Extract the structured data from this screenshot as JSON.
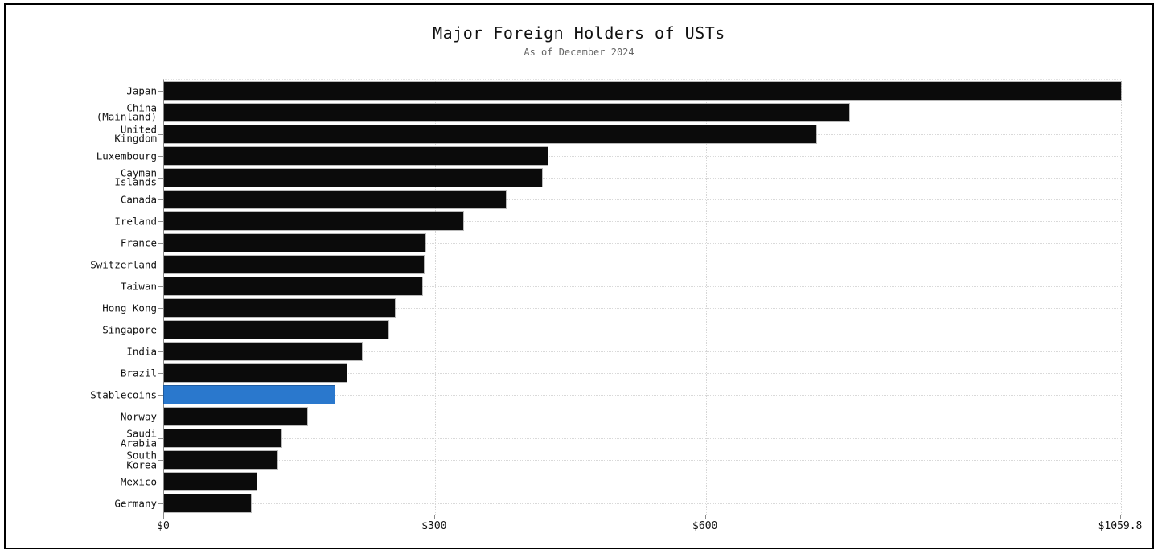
{
  "chart_data": {
    "type": "bar",
    "orientation": "horizontal",
    "title": "Major Foreign Holders of USTs",
    "subtitle": "As of December 2024",
    "xlim": [
      0,
      1059.8
    ],
    "x_ticks": [
      {
        "value": 0,
        "label": "$0"
      },
      {
        "value": 300,
        "label": "$300"
      },
      {
        "value": 600,
        "label": "$600"
      },
      {
        "value": 1059.8,
        "label": "$1059.8"
      }
    ],
    "categories": [
      "Japan",
      "China\n(Mainland)",
      "United\nKingdom",
      "Luxembourg",
      "Cayman\nIslands",
      "Canada",
      "Ireland",
      "France",
      "Switzerland",
      "Taiwan",
      "Hong Kong",
      "Singapore",
      "India",
      "Brazil",
      "Stablecoins",
      "Norway",
      "Saudi\nArabia",
      "South\nKorea",
      "Mexico",
      "Germany"
    ],
    "values": [
      1059.8,
      759.0,
      722.7,
      424.5,
      418.7,
      378.8,
      331.5,
      289.0,
      288.0,
      285.5,
      255.4,
      248.3,
      219.0,
      202.0,
      188.5,
      158.4,
      130.0,
      125.5,
      102.3,
      96.1
    ],
    "highlight_category": "Stablecoins",
    "grid_style": "dotted",
    "legend": "none",
    "colors": {
      "bar": "#0b0b0b",
      "highlight": "#2a78cd",
      "highlight_edge": "#1f5b9e",
      "grid": "#d6d6d6",
      "axis": "#8a8a8a",
      "title": "#111111",
      "subtitle": "#666666"
    }
  }
}
